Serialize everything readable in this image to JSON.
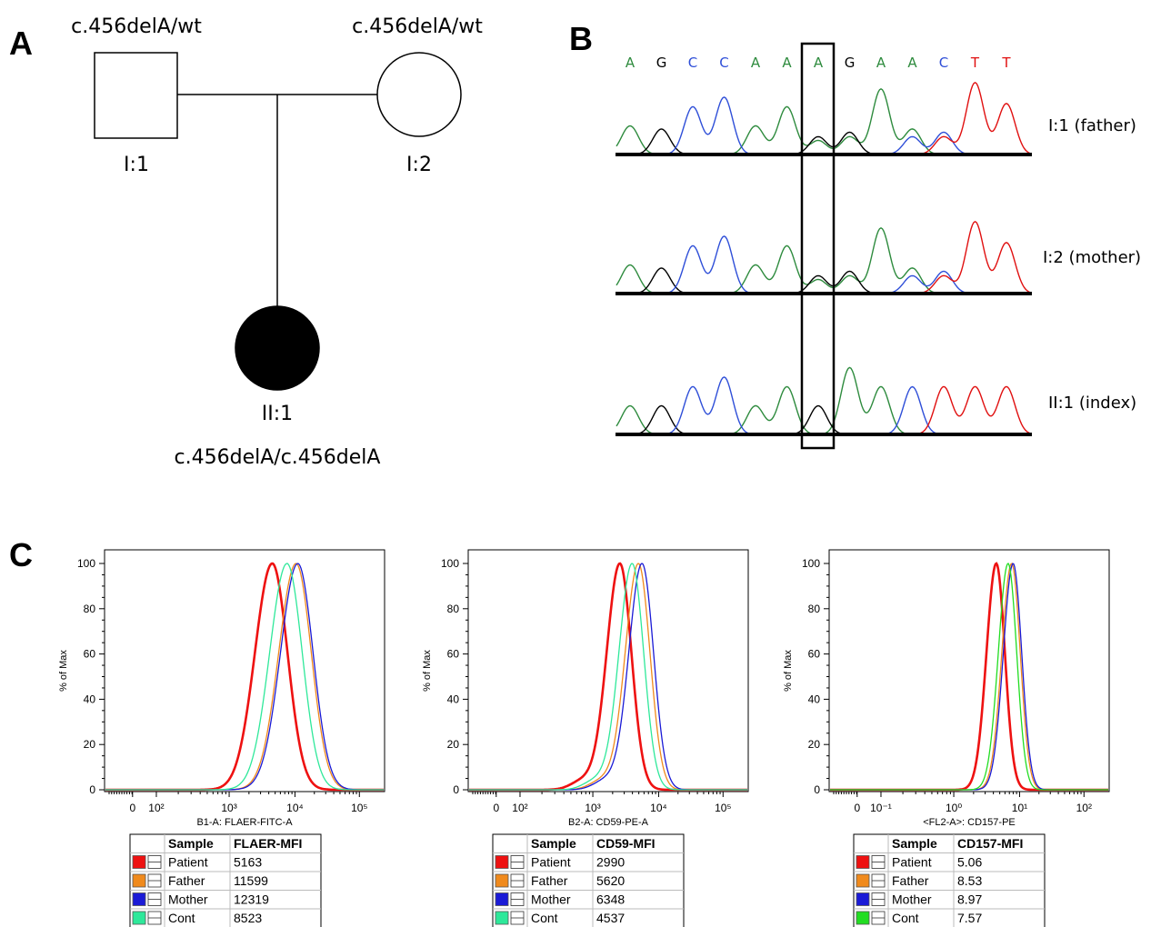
{
  "panels": {
    "a": "A",
    "b": "B",
    "c": "C"
  },
  "pedigree": {
    "father_genotype": "c.456delA/wt",
    "mother_genotype": "c.456delA/wt",
    "father_id": "I:1",
    "mother_id": "I:2",
    "child_id": "II:1",
    "child_genotype": "c.456delA/c.456delA"
  },
  "sequencing": {
    "bases": [
      "A",
      "G",
      "C",
      "C",
      "A",
      "A",
      "A",
      "G",
      "A",
      "A",
      "C",
      "T",
      "T"
    ],
    "base_colors": {
      "A": "#2e8b3e",
      "G": "#000000",
      "C": "#2f4fd8",
      "T": "#e01010"
    },
    "highlight_index": 6,
    "traces": [
      {
        "label": "I:1 (father)"
      },
      {
        "label": "I:2 (mother)"
      },
      {
        "label": "II:1 (index)"
      }
    ]
  },
  "chart_data": [
    {
      "type": "line",
      "ylabel": "% of Max",
      "xlabel": "B1-A: FLAER-FITC-A",
      "x_scale": "log",
      "x_ticks": [
        "0",
        "10²",
        "10³",
        "10⁴",
        "10⁵"
      ],
      "y_ticks": [
        "0",
        "20",
        "40",
        "60",
        "80",
        "100"
      ],
      "ylim": [
        0,
        100
      ],
      "legend_header": [
        "Sample",
        "FLAER-MFI"
      ],
      "series": [
        {
          "name": "Patient",
          "mfi": "5163",
          "color": "#ee1111"
        },
        {
          "name": "Father",
          "mfi": "11599",
          "color": "#f08a1c"
        },
        {
          "name": "Mother",
          "mfi": "12319",
          "color": "#1a1ad6"
        },
        {
          "name": "Cont",
          "mfi": "8523",
          "color": "#2ee89a"
        }
      ]
    },
    {
      "type": "line",
      "ylabel": "% of Max",
      "xlabel": "B2-A: CD59-PE-A",
      "x_scale": "log",
      "x_ticks": [
        "0",
        "10²",
        "10³",
        "10⁴",
        "10⁵"
      ],
      "y_ticks": [
        "0",
        "20",
        "40",
        "60",
        "80",
        "100"
      ],
      "ylim": [
        0,
        100
      ],
      "legend_header": [
        "Sample",
        "CD59-MFI"
      ],
      "series": [
        {
          "name": "Patient",
          "mfi": "2990",
          "color": "#ee1111"
        },
        {
          "name": "Father",
          "mfi": "5620",
          "color": "#f08a1c"
        },
        {
          "name": "Mother",
          "mfi": "6348",
          "color": "#1a1ad6"
        },
        {
          "name": "Cont",
          "mfi": "4537",
          "color": "#2ee89a"
        }
      ]
    },
    {
      "type": "line",
      "ylabel": "% of Max",
      "xlabel": "<FL2-A>: CD157-PE",
      "x_scale": "log",
      "x_ticks": [
        "0",
        "10⁻¹",
        "10⁰",
        "10¹",
        "10²"
      ],
      "y_ticks": [
        "0",
        "20",
        "40",
        "60",
        "80",
        "100"
      ],
      "ylim": [
        0,
        100
      ],
      "legend_header": [
        "Sample",
        "CD157-MFI"
      ],
      "series": [
        {
          "name": "Patient",
          "mfi": "5.06",
          "color": "#ee1111"
        },
        {
          "name": "Father",
          "mfi": "8.53",
          "color": "#f08a1c"
        },
        {
          "name": "Mother",
          "mfi": "8.97",
          "color": "#1a1ad6"
        },
        {
          "name": "Cont",
          "mfi": "7.57",
          "color": "#22dd22"
        }
      ]
    }
  ]
}
